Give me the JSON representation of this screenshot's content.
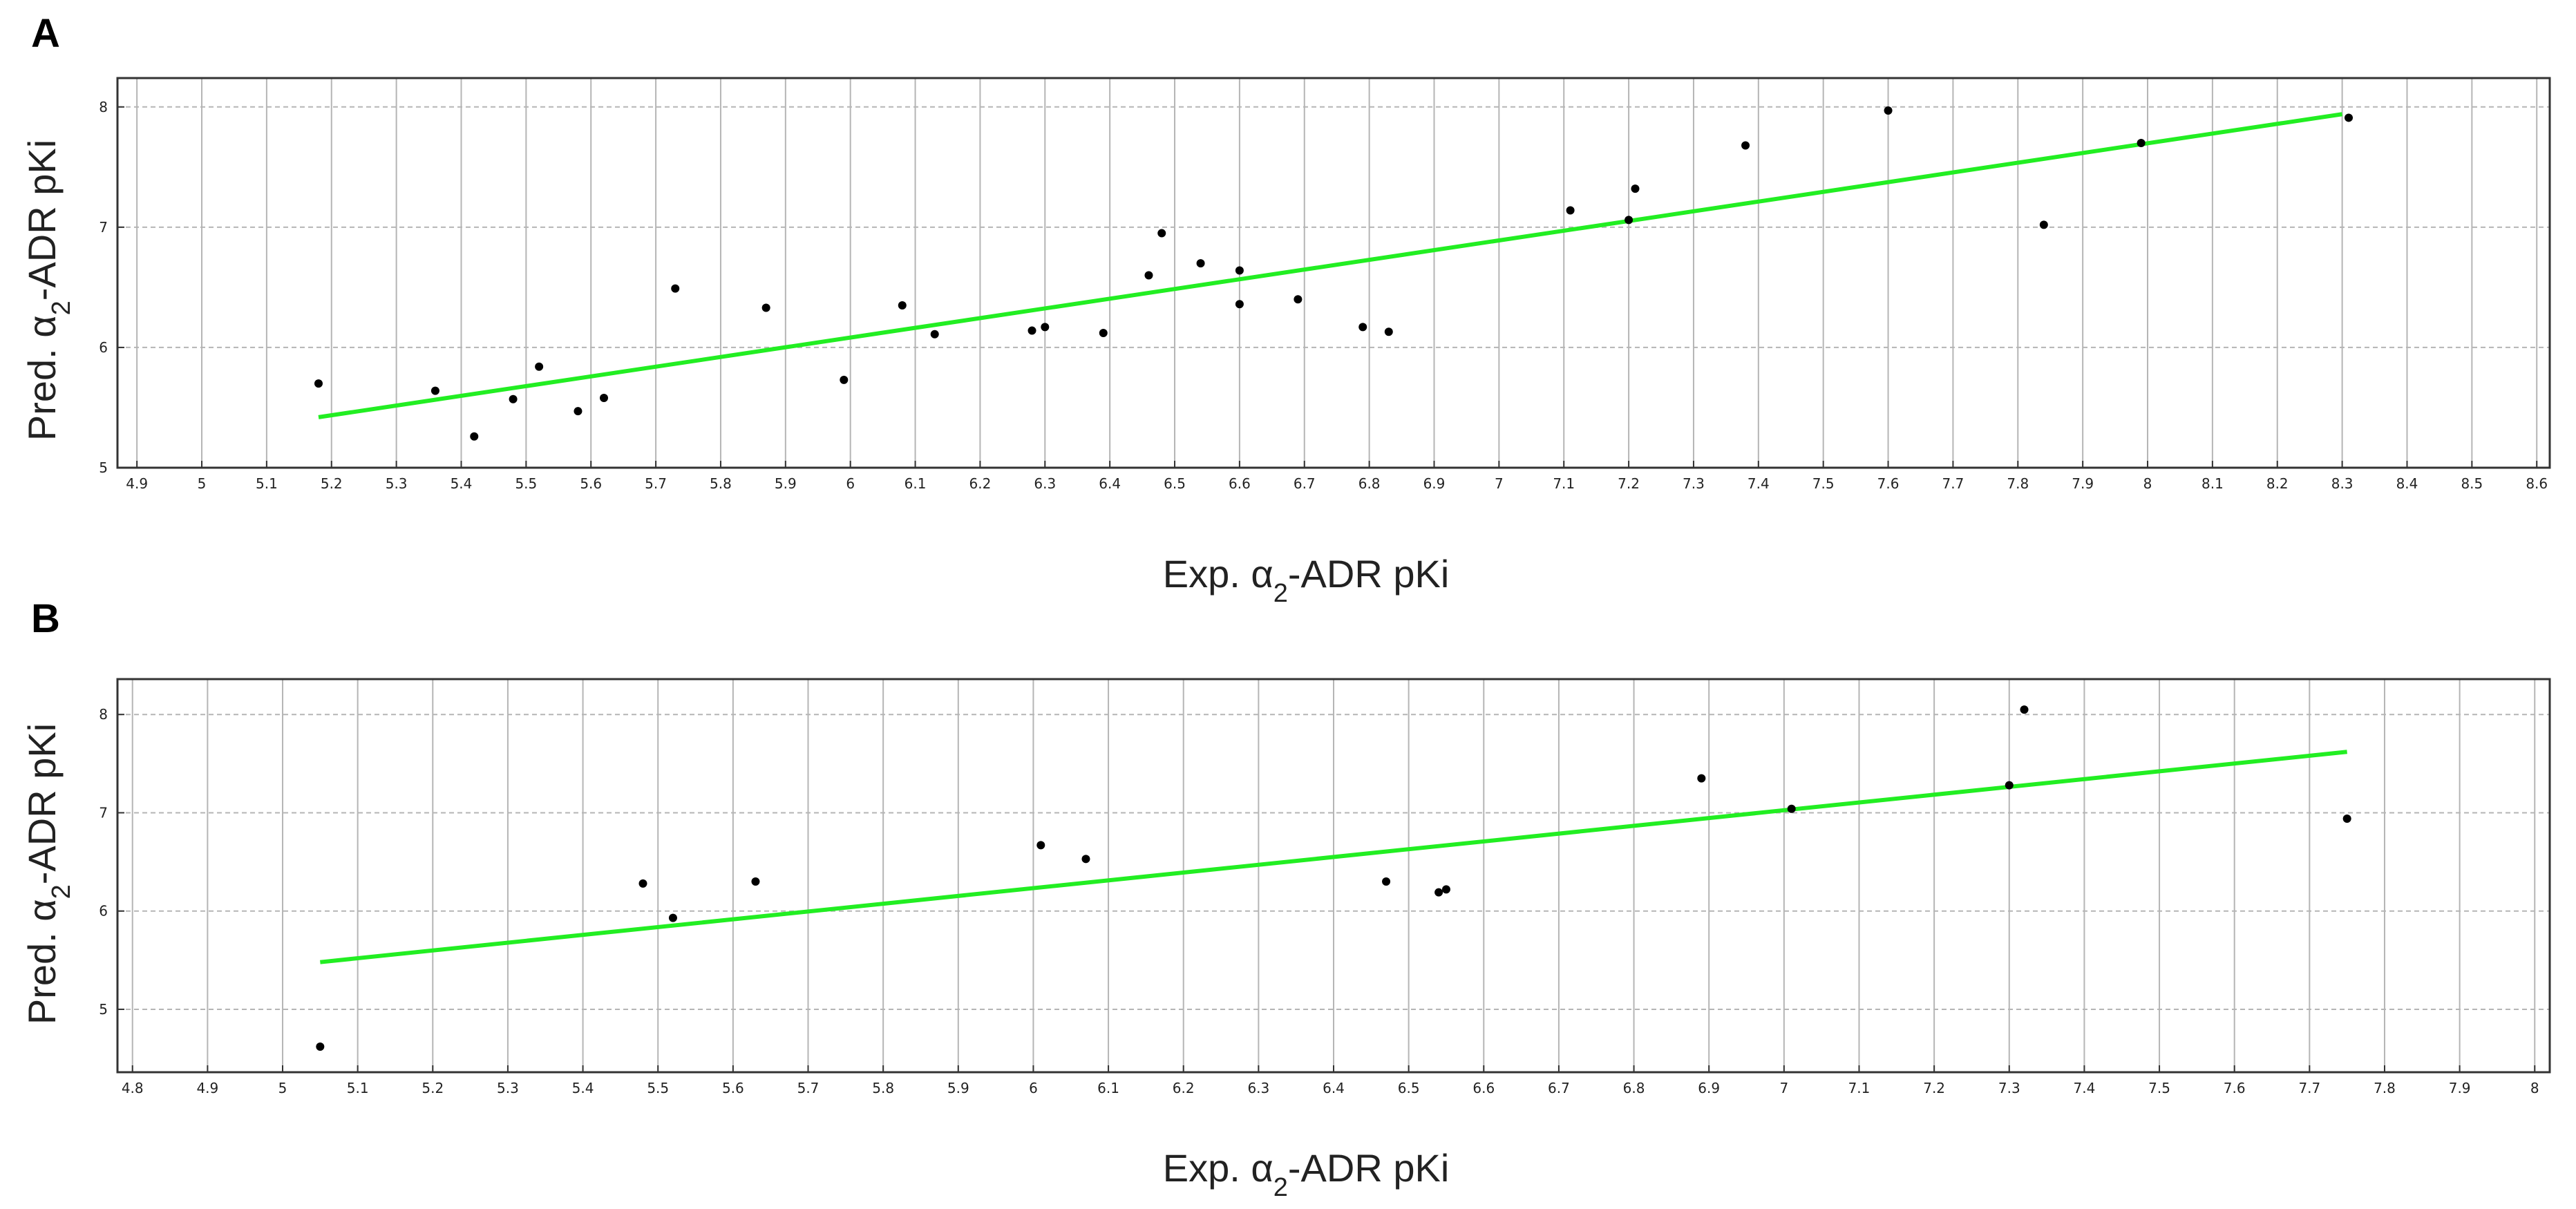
{
  "chart_data": [
    {
      "panel": "A",
      "type": "scatter",
      "xlabel": "Exp. α2-ADR pKi",
      "ylabel": "Pred. α2-ADR pKi",
      "xlim": [
        4.87,
        8.62
      ],
      "ylim": [
        5,
        8.24
      ],
      "xticks": [
        "4.9",
        "5",
        "5.1",
        "5.2",
        "5.3",
        "5.4",
        "5.5",
        "5.6",
        "5.7",
        "5.8",
        "5.9",
        "6",
        "6.1",
        "6.2",
        "6.3",
        "6.4",
        "6.5",
        "6.6",
        "6.7",
        "6.8",
        "6.9",
        "7",
        "7.1",
        "7.2",
        "7.3",
        "7.4",
        "7.5",
        "7.6",
        "7.7",
        "7.8",
        "7.9",
        "8",
        "8.1",
        "8.2",
        "8.3",
        "8.4",
        "8.5",
        "8.6"
      ],
      "yticks": [
        "5",
        "6",
        "7",
        "8"
      ],
      "grid": true,
      "points": [
        [
          5.18,
          5.7
        ],
        [
          5.36,
          5.64
        ],
        [
          5.42,
          5.26
        ],
        [
          5.48,
          5.57
        ],
        [
          5.52,
          5.84
        ],
        [
          5.58,
          5.47
        ],
        [
          5.62,
          5.58
        ],
        [
          5.73,
          6.49
        ],
        [
          5.87,
          6.33
        ],
        [
          5.99,
          5.73
        ],
        [
          6.08,
          6.35
        ],
        [
          6.13,
          6.11
        ],
        [
          6.28,
          6.14
        ],
        [
          6.3,
          6.17
        ],
        [
          6.39,
          6.12
        ],
        [
          6.46,
          6.6
        ],
        [
          6.48,
          6.95
        ],
        [
          6.54,
          6.7
        ],
        [
          6.6,
          6.64
        ],
        [
          6.6,
          6.36
        ],
        [
          6.69,
          6.4
        ],
        [
          6.79,
          6.17
        ],
        [
          6.83,
          6.13
        ],
        [
          7.11,
          7.14
        ],
        [
          7.2,
          7.06
        ],
        [
          7.21,
          7.32
        ],
        [
          7.38,
          7.68
        ],
        [
          7.6,
          7.97
        ],
        [
          7.84,
          7.02
        ],
        [
          7.99,
          7.7
        ],
        [
          8.31,
          7.91
        ]
      ],
      "fit_line": [
        [
          5.18,
          5.42
        ],
        [
          8.3,
          7.94
        ]
      ],
      "colors": {
        "points": "#000000",
        "fit_line": "#22ee22"
      }
    },
    {
      "panel": "B",
      "type": "scatter",
      "xlabel": "Exp. α2-ADR pKi",
      "ylabel": "Pred. α2-ADR pKi",
      "xlim": [
        4.78,
        8.02
      ],
      "ylim": [
        4.36,
        8.36
      ],
      "xticks": [
        "4.8",
        "4.9",
        "5",
        "5.1",
        "5.2",
        "5.3",
        "5.4",
        "5.5",
        "5.6",
        "5.7",
        "5.8",
        "5.9",
        "6",
        "6.1",
        "6.2",
        "6.3",
        "6.4",
        "6.5",
        "6.6",
        "6.7",
        "6.8",
        "6.9",
        "7",
        "7.1",
        "7.2",
        "7.3",
        "7.4",
        "7.5",
        "7.6",
        "7.7",
        "7.8",
        "7.9",
        "8"
      ],
      "yticks": [
        "5",
        "6",
        "7",
        "8"
      ],
      "grid": true,
      "points": [
        [
          5.05,
          4.62
        ],
        [
          5.48,
          6.28
        ],
        [
          5.52,
          5.93
        ],
        [
          5.63,
          6.3
        ],
        [
          6.01,
          6.67
        ],
        [
          6.07,
          6.53
        ],
        [
          6.47,
          6.3
        ],
        [
          6.54,
          6.19
        ],
        [
          6.55,
          6.22
        ],
        [
          6.89,
          7.35
        ],
        [
          7.01,
          7.04
        ],
        [
          7.3,
          7.28
        ],
        [
          7.32,
          8.05
        ],
        [
          7.75,
          6.94
        ]
      ],
      "fit_line": [
        [
          5.05,
          5.48
        ],
        [
          7.75,
          7.62
        ]
      ],
      "colors": {
        "points": "#000000",
        "fit_line": "#22ee22"
      }
    }
  ]
}
